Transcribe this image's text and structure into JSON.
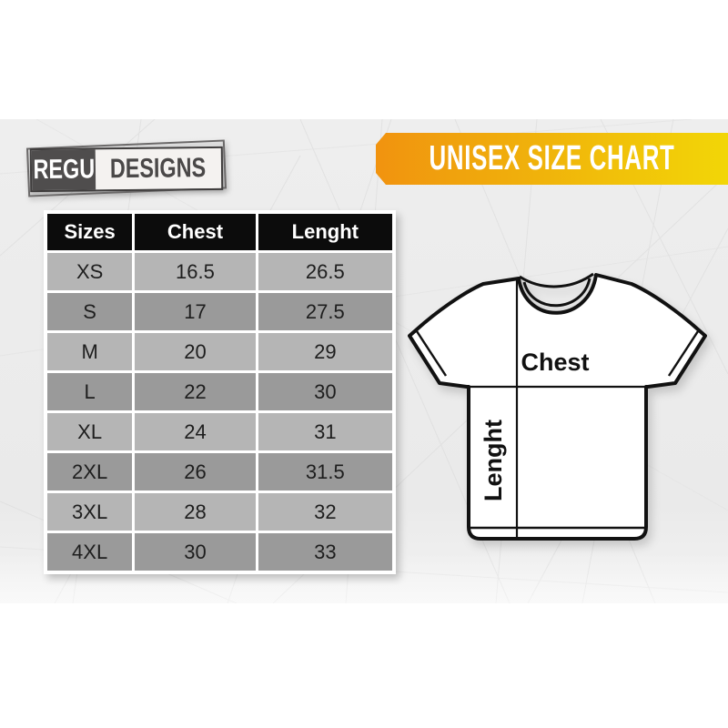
{
  "colors": {
    "band_bg": "#ececec",
    "banner_orange": "#f1930f",
    "banner_yellow": "#f2d607",
    "header_bg": "#0c0c0c",
    "header_text": "#ffffff",
    "row_light": "#b5b5b5",
    "row_dark": "#9a9a9a",
    "cell_text": "#1e1e1e",
    "logo_dark": "#4f4d4d",
    "logo_light_bg": "#f4f2f0"
  },
  "logo": {
    "primary": "REGU",
    "secondary": "DESIGNS"
  },
  "banner": {
    "title": "UNISEX SIZE CHART"
  },
  "shirt": {
    "chest_label": "Chest",
    "length_label": "Lenght"
  },
  "chart_data": {
    "type": "table",
    "title": "UNISEX SIZE CHART",
    "columns": [
      "Sizes",
      "Chest",
      "Lenght"
    ],
    "rows": [
      [
        "XS",
        "16.5",
        "26.5"
      ],
      [
        "S",
        "17",
        "27.5"
      ],
      [
        "M",
        "20",
        "29"
      ],
      [
        "L",
        "22",
        "30"
      ],
      [
        "XL",
        "24",
        "31"
      ],
      [
        "2XL",
        "26",
        "31.5"
      ],
      [
        "3XL",
        "28",
        "32"
      ],
      [
        "4XL",
        "30",
        "33"
      ]
    ]
  }
}
